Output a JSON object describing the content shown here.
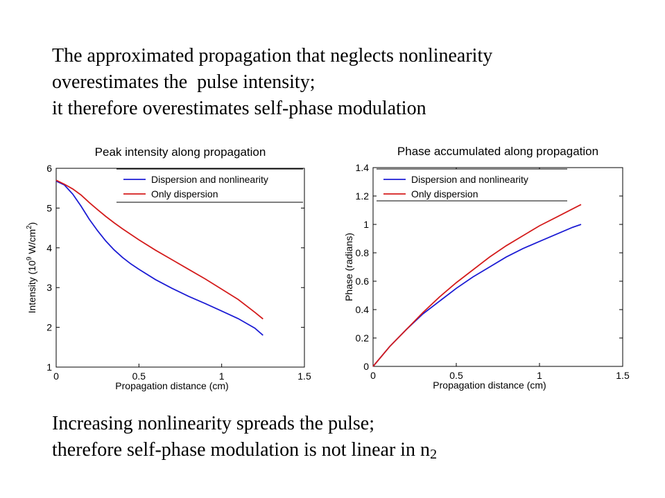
{
  "slide": {
    "top_lines": [
      "The approximated propagation that neglects nonlinearity",
      "overestimates the  pulse intensity;",
      "it therefore overestimates self-phase modulation"
    ],
    "bottom_line_1": "Increasing nonlinearity spreads the pulse;",
    "bottom_line_2_prefix": "therefore self-phase modulation is not linear in n",
    "bottom_line_2_sub": "2"
  },
  "colors": {
    "blue_series": "#1c1cd4",
    "red_series": "#d41c1c"
  },
  "chart_data": [
    {
      "type": "line",
      "title": "Peak intensity along propagation",
      "xlabel": "Propagation distance (cm)",
      "ylabel_main": "Intensity (10",
      "ylabel_sup": "9",
      "ylabel_mid": " W/cm",
      "ylabel_sup2": "2",
      "ylabel_end": ")",
      "xlim": [
        0,
        1.5
      ],
      "ylim": [
        1,
        6
      ],
      "xticks": [
        0,
        0.5,
        1,
        1.5
      ],
      "xtick_labels": [
        "0",
        "0.5",
        "1",
        "1.5"
      ],
      "yticks": [
        1,
        2,
        3,
        4,
        5,
        6
      ],
      "ytick_labels": [
        "1",
        "2",
        "3",
        "4",
        "5",
        "6"
      ],
      "legend_position": "top-right",
      "series": [
        {
          "name": "Dispersion and nonlinearity",
          "color": "#1c1cd4",
          "x": [
            0,
            0.05,
            0.1,
            0.15,
            0.2,
            0.25,
            0.3,
            0.35,
            0.4,
            0.45,
            0.5,
            0.6,
            0.7,
            0.8,
            0.9,
            1.0,
            1.1,
            1.2,
            1.25
          ],
          "y": [
            5.68,
            5.58,
            5.35,
            5.05,
            4.72,
            4.43,
            4.17,
            3.95,
            3.76,
            3.6,
            3.46,
            3.2,
            2.98,
            2.78,
            2.6,
            2.41,
            2.22,
            1.98,
            1.8
          ]
        },
        {
          "name": "Only dispersion",
          "color": "#d41c1c",
          "x": [
            0,
            0.05,
            0.1,
            0.15,
            0.2,
            0.25,
            0.3,
            0.35,
            0.4,
            0.45,
            0.5,
            0.6,
            0.7,
            0.8,
            0.9,
            1.0,
            1.1,
            1.2,
            1.25
          ],
          "y": [
            5.7,
            5.6,
            5.48,
            5.33,
            5.14,
            4.96,
            4.79,
            4.63,
            4.48,
            4.34,
            4.2,
            3.94,
            3.7,
            3.46,
            3.22,
            2.96,
            2.7,
            2.38,
            2.21
          ]
        }
      ]
    },
    {
      "type": "line",
      "title": "Phase accumulated along propagation",
      "xlabel": "Propagation distance (cm)",
      "ylabel": "Phase (radians)",
      "xlim": [
        0,
        1.5
      ],
      "ylim": [
        0,
        1.4
      ],
      "xticks": [
        0,
        0.5,
        1,
        1.5
      ],
      "xtick_labels": [
        "0",
        "0.5",
        "1",
        "1.5"
      ],
      "yticks": [
        0,
        0.2,
        0.4,
        0.6,
        0.8,
        1,
        1.2,
        1.4
      ],
      "ytick_labels": [
        "0",
        "0.2",
        "0.4",
        "0.6",
        "0.8",
        "1",
        "1.2",
        "1.4"
      ],
      "legend_position": "top-right",
      "series": [
        {
          "name": "Dispersion and nonlinearity",
          "color": "#1c1cd4",
          "x": [
            0,
            0.1,
            0.2,
            0.3,
            0.4,
            0.5,
            0.6,
            0.7,
            0.8,
            0.9,
            1.0,
            1.1,
            1.2,
            1.25
          ],
          "y": [
            0,
            0.14,
            0.26,
            0.37,
            0.46,
            0.55,
            0.63,
            0.7,
            0.77,
            0.83,
            0.88,
            0.93,
            0.98,
            1.0
          ]
        },
        {
          "name": "Only dispersion",
          "color": "#d41c1c",
          "x": [
            0,
            0.1,
            0.2,
            0.3,
            0.4,
            0.5,
            0.6,
            0.7,
            0.8,
            0.9,
            1.0,
            1.1,
            1.2,
            1.25
          ],
          "y": [
            0,
            0.14,
            0.26,
            0.38,
            0.49,
            0.59,
            0.68,
            0.77,
            0.85,
            0.92,
            0.99,
            1.05,
            1.11,
            1.14
          ]
        }
      ]
    }
  ]
}
